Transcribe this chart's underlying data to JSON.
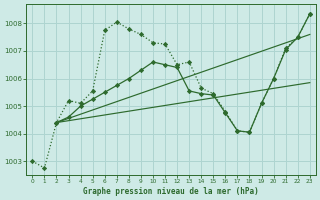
{
  "title": "Graphe pression niveau de la mer (hPa)",
  "bg_color": "#ceeae6",
  "grid_color": "#aed4d0",
  "line_color": "#2d6a2d",
  "xlim": [
    -0.5,
    23.5
  ],
  "ylim": [
    1002.5,
    1008.7
  ],
  "yticks": [
    1003,
    1004,
    1005,
    1006,
    1007,
    1008
  ],
  "xticks": [
    0,
    1,
    2,
    3,
    4,
    5,
    6,
    7,
    8,
    9,
    10,
    11,
    12,
    13,
    14,
    15,
    16,
    17,
    18,
    19,
    20,
    21,
    22,
    23
  ],
  "dotted_series": {
    "x": [
      0,
      1,
      2,
      3,
      4,
      5,
      6,
      7,
      8,
      9,
      10,
      11,
      12,
      13,
      14,
      15,
      16,
      17,
      18,
      19,
      20,
      21,
      22,
      23
    ],
    "y": [
      1003.0,
      1002.75,
      1004.4,
      1005.2,
      1005.1,
      1005.55,
      1007.75,
      1008.05,
      1007.8,
      1007.6,
      1007.3,
      1007.25,
      1006.5,
      1006.6,
      1005.65,
      1005.45,
      1004.8,
      1004.1,
      1004.05,
      1005.1,
      1006.0,
      1007.1,
      1007.5,
      1008.35
    ]
  },
  "line1": {
    "x": [
      2,
      23
    ],
    "y": [
      1004.4,
      1007.6
    ]
  },
  "line2": {
    "x": [
      2,
      23
    ],
    "y": [
      1004.4,
      1005.85
    ]
  },
  "marker_series": {
    "x": [
      2,
      3,
      4,
      5,
      6,
      7,
      8,
      9,
      10,
      11,
      12,
      13,
      14,
      15,
      16,
      17,
      18,
      19,
      20,
      21,
      22,
      23
    ],
    "y": [
      1004.4,
      1004.6,
      1005.0,
      1005.25,
      1005.5,
      1005.75,
      1006.0,
      1006.3,
      1006.6,
      1006.5,
      1006.4,
      1005.55,
      1005.45,
      1005.4,
      1004.75,
      1004.1,
      1004.05,
      1005.1,
      1006.0,
      1007.05,
      1007.5,
      1008.35
    ]
  }
}
